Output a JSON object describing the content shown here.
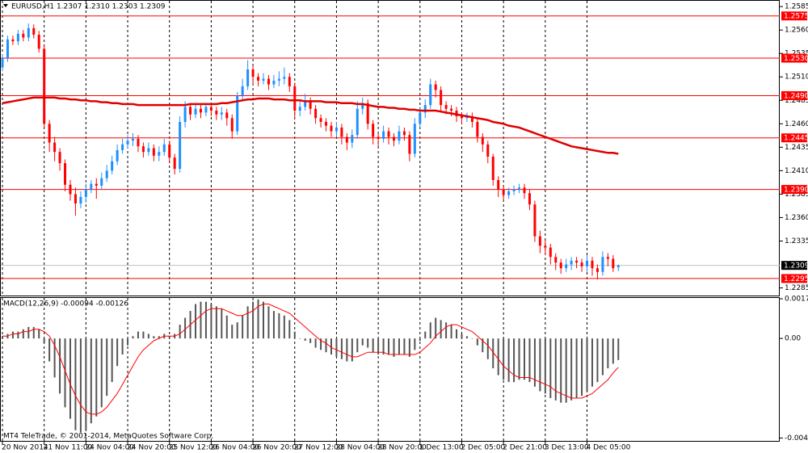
{
  "chart_data": [
    {
      "type": "candlestick",
      "title": "EURUSD,H1  1.2307 1.2310 1.2303 1.2309",
      "categories": [
        "20 Nov 2014",
        null,
        null,
        null,
        null,
        null,
        null,
        null,
        "21 Nov 11:00",
        null,
        null,
        null,
        null,
        null,
        null,
        null,
        "24 Nov 04:00",
        null,
        null,
        null,
        null,
        null,
        null,
        null,
        "24 Nov 20:00",
        null,
        null,
        null,
        null,
        null,
        null,
        null,
        "25 Nov 12:00",
        null,
        null,
        null,
        null,
        null,
        null,
        null,
        "26 Nov 04:00",
        null,
        null,
        null,
        null,
        null,
        null,
        null,
        "26 Nov 20:00",
        null,
        null,
        null,
        null,
        null,
        null,
        null,
        "27 Nov 12:00",
        null,
        null,
        null,
        null,
        null,
        null,
        null,
        "28 Nov 04:00",
        null,
        null,
        null,
        null,
        null,
        null,
        null,
        "28 Nov 20:00",
        null,
        null,
        null,
        null,
        null,
        null,
        null,
        "1 Dec 13:00",
        null,
        null,
        null,
        null,
        null,
        null,
        null,
        "2 Dec 05:00",
        null,
        null,
        null,
        null,
        null,
        null,
        null,
        "2 Dec 21:00",
        null,
        null,
        null,
        null,
        null,
        null,
        null,
        "3 Dec 13:00",
        null,
        null,
        null,
        null,
        null,
        null,
        null,
        "4 Dec 05:00",
        null,
        null,
        null,
        null,
        null,
        null
      ],
      "open": [
        1.252,
        1.253,
        1.255,
        1.2548,
        1.2556,
        1.2552,
        1.2562,
        1.2555,
        1.254,
        1.246,
        1.244,
        1.243,
        1.2418,
        1.2395,
        1.2385,
        1.2375,
        1.2382,
        1.239,
        1.2396,
        1.2394,
        1.2402,
        1.241,
        1.242,
        1.2432,
        1.2438,
        1.2442,
        1.2444,
        1.2436,
        1.243,
        1.2434,
        1.2426,
        1.243,
        1.2438,
        1.2424,
        1.2412,
        1.2462,
        1.2478,
        1.247,
        1.2476,
        1.2472,
        1.2478,
        1.2474,
        1.247,
        1.2472,
        1.2466,
        1.2452,
        1.249,
        1.25,
        1.2518,
        1.251,
        1.2506,
        1.2508,
        1.2502,
        1.2506,
        1.2508,
        1.251,
        1.25,
        1.2474,
        1.2478,
        1.2484,
        1.2476,
        1.2466,
        1.2462,
        1.2458,
        1.2452,
        1.2456,
        1.2446,
        1.244,
        1.2448,
        1.2476,
        1.2482,
        1.246,
        1.2446,
        1.2444,
        1.2452,
        1.2446,
        1.2442,
        1.2452,
        1.2448,
        1.2428,
        1.246,
        1.2472,
        1.248,
        1.2502,
        1.2496,
        1.248,
        1.2476,
        1.2474,
        1.2468,
        1.2466,
        1.2468,
        1.2462,
        1.2446,
        1.2438,
        1.2425,
        1.24,
        1.239,
        1.2384,
        1.2388,
        1.239,
        1.2392,
        1.2386,
        1.2374,
        1.234,
        1.233,
        1.2328,
        1.2318,
        1.2312,
        1.2306,
        1.231,
        1.2314,
        1.2312,
        1.2308,
        1.2314,
        1.2306,
        1.2302,
        1.2318,
        1.2316,
        1.2307
      ],
      "high": [
        1.2534,
        1.2554,
        1.2554,
        1.256,
        1.256,
        1.2567,
        1.2566,
        1.2559,
        1.2544,
        1.2464,
        1.2446,
        1.2434,
        1.2422,
        1.24,
        1.2392,
        1.2388,
        1.2396,
        1.24,
        1.2402,
        1.2408,
        1.2416,
        1.2426,
        1.2438,
        1.2444,
        1.2448,
        1.245,
        1.2448,
        1.244,
        1.244,
        1.2438,
        1.2436,
        1.2444,
        1.2442,
        1.2428,
        1.2468,
        1.2484,
        1.2482,
        1.248,
        1.248,
        1.2482,
        1.2482,
        1.2478,
        1.2478,
        1.2476,
        1.247,
        1.2494,
        1.2508,
        1.2528,
        1.2522,
        1.2514,
        1.2514,
        1.2512,
        1.2512,
        1.2516,
        1.252,
        1.2514,
        1.2504,
        1.2484,
        1.2492,
        1.2488,
        1.248,
        1.247,
        1.2466,
        1.2462,
        1.2462,
        1.246,
        1.245,
        1.2454,
        1.2484,
        1.2488,
        1.2486,
        1.2464,
        1.245,
        1.2458,
        1.2456,
        1.245,
        1.2458,
        1.2456,
        1.2452,
        1.2466,
        1.2478,
        1.2486,
        1.2508,
        1.2506,
        1.25,
        1.2484,
        1.248,
        1.2478,
        1.2472,
        1.2472,
        1.2472,
        1.2466,
        1.245,
        1.2442,
        1.2428,
        1.2404,
        1.2394,
        1.2392,
        1.2394,
        1.2396,
        1.2396,
        1.239,
        1.2378,
        1.2346,
        1.2336,
        1.2332,
        1.2322,
        1.2316,
        1.2316,
        1.2318,
        1.2318,
        1.2316,
        1.232,
        1.2318,
        1.231,
        1.2324,
        1.2322,
        1.232,
        1.231
      ],
      "low": [
        1.2516,
        1.2526,
        1.2544,
        1.2544,
        1.2548,
        1.2548,
        1.2551,
        1.2536,
        1.2456,
        1.243,
        1.242,
        1.241,
        1.2388,
        1.2378,
        1.2362,
        1.237,
        1.2376,
        1.2386,
        1.238,
        1.239,
        1.2398,
        1.2406,
        1.2416,
        1.2428,
        1.2434,
        1.2436,
        1.243,
        1.2424,
        1.2426,
        1.242,
        1.242,
        1.2426,
        1.2418,
        1.2406,
        1.2408,
        1.2456,
        1.2464,
        1.2466,
        1.2466,
        1.2468,
        1.2468,
        1.2464,
        1.2464,
        1.2458,
        1.2444,
        1.2448,
        1.2486,
        1.2496,
        1.2502,
        1.25,
        1.2502,
        1.2496,
        1.2498,
        1.25,
        1.2502,
        1.2494,
        1.2466,
        1.2468,
        1.2474,
        1.247,
        1.246,
        1.2456,
        1.2452,
        1.2446,
        1.2446,
        1.2438,
        1.2432,
        1.2434,
        1.2444,
        1.247,
        1.2454,
        1.2438,
        1.2436,
        1.244,
        1.2438,
        1.2436,
        1.2438,
        1.2442,
        1.242,
        1.2424,
        1.2456,
        1.2466,
        1.2476,
        1.2488,
        1.2472,
        1.247,
        1.2468,
        1.2462,
        1.246,
        1.2462,
        1.2456,
        1.244,
        1.243,
        1.2418,
        1.2394,
        1.2382,
        1.2378,
        1.238,
        1.2384,
        1.2386,
        1.238,
        1.2368,
        1.2334,
        1.2322,
        1.232,
        1.231,
        1.2304,
        1.23,
        1.2302,
        1.2304,
        1.2306,
        1.2302,
        1.2302,
        1.2298,
        1.2294,
        1.2298,
        1.2308,
        1.2302,
        1.2303
      ],
      "close": [
        1.253,
        1.255,
        1.2548,
        1.2556,
        1.2552,
        1.2562,
        1.2555,
        1.254,
        1.246,
        1.244,
        1.243,
        1.2418,
        1.2395,
        1.2385,
        1.2375,
        1.2382,
        1.239,
        1.2396,
        1.2394,
        1.2402,
        1.241,
        1.242,
        1.2432,
        1.2438,
        1.2442,
        1.2444,
        1.2436,
        1.243,
        1.2434,
        1.2426,
        1.243,
        1.2438,
        1.2424,
        1.2412,
        1.2462,
        1.2478,
        1.247,
        1.2476,
        1.2472,
        1.2478,
        1.2474,
        1.247,
        1.2472,
        1.2466,
        1.2452,
        1.249,
        1.25,
        1.2518,
        1.251,
        1.2506,
        1.2508,
        1.2502,
        1.2506,
        1.2508,
        1.251,
        1.25,
        1.2474,
        1.2478,
        1.2484,
        1.2476,
        1.2466,
        1.2462,
        1.2458,
        1.2452,
        1.2456,
        1.2446,
        1.244,
        1.2448,
        1.2476,
        1.2482,
        1.246,
        1.2446,
        1.2444,
        1.2452,
        1.2446,
        1.2442,
        1.2452,
        1.2448,
        1.2428,
        1.246,
        1.2472,
        1.248,
        1.2502,
        1.2496,
        1.248,
        1.2476,
        1.2474,
        1.2468,
        1.2466,
        1.2468,
        1.2462,
        1.2446,
        1.2438,
        1.2425,
        1.24,
        1.239,
        1.2384,
        1.2388,
        1.239,
        1.2392,
        1.2386,
        1.2374,
        1.234,
        1.233,
        1.2328,
        1.2318,
        1.2312,
        1.2306,
        1.231,
        1.2314,
        1.2312,
        1.2308,
        1.2314,
        1.2306,
        1.2302,
        1.2318,
        1.2316,
        1.2306,
        1.2309
      ],
      "up_color": "#1e90ff",
      "down_color": "#ff0000",
      "overlay": {
        "color": "#e00000",
        "values": [
          1.2482,
          1.2483,
          1.2484,
          1.2485,
          1.2486,
          1.2487,
          1.2488,
          1.2488,
          1.2488,
          1.2488,
          1.2488,
          1.2487,
          1.2487,
          1.2486,
          1.2486,
          1.2485,
          1.2485,
          1.2484,
          1.2484,
          1.2483,
          1.2483,
          1.2482,
          1.2482,
          1.2481,
          1.2481,
          1.2481,
          1.248,
          1.248,
          1.248,
          1.248,
          1.248,
          1.248,
          1.248,
          1.248,
          1.248,
          1.248,
          1.2481,
          1.2481,
          1.2481,
          1.2481,
          1.2481,
          1.2481,
          1.2482,
          1.2482,
          1.2483,
          1.2484,
          1.2485,
          1.2486,
          1.2486,
          1.2487,
          1.2487,
          1.2487,
          1.2486,
          1.2486,
          1.2486,
          1.2485,
          1.2485,
          1.2485,
          1.2484,
          1.2484,
          1.2484,
          1.2484,
          1.2483,
          1.2483,
          1.2483,
          1.2482,
          1.2482,
          1.2482,
          1.2481,
          1.2481,
          1.248,
          1.2479,
          1.2478,
          1.2478,
          1.2477,
          1.2477,
          1.2476,
          1.2476,
          1.2475,
          1.2475,
          1.2474,
          1.2474,
          1.2474,
          1.2474,
          1.2473,
          1.2472,
          1.2471,
          1.247,
          1.2469,
          1.2468,
          1.2467,
          1.2466,
          1.2465,
          1.2464,
          1.2462,
          1.2461,
          1.246,
          1.2458,
          1.2457,
          1.2456,
          1.2454,
          1.2452,
          1.245,
          1.2448,
          1.2446,
          1.2444,
          1.2442,
          1.244,
          1.2438,
          1.2436,
          1.2435,
          1.2434,
          1.2433,
          1.2432,
          1.2431,
          1.243,
          1.2429,
          1.2429,
          1.2428
        ]
      },
      "ylim": [
        1.2276,
        1.2592
      ],
      "yticks": [
        1.2585,
        {
          "value": 1.256,
          "label": "1.2560"
        },
        1.2535,
        {
          "value": 1.251,
          "label": "1.2510"
        },
        1.2485,
        {
          "value": 1.246,
          "label": "1.2460"
        },
        1.2435,
        {
          "value": 1.241,
          "label": "1.2410"
        },
        1.2385,
        {
          "value": 1.236,
          "label": "1.2360"
        },
        1.2335,
        1.2285
      ],
      "levels": [
        1.2575,
        {
          "value": 1.253,
          "label": "1.2530"
        },
        {
          "value": 1.249,
          "label": "1.2490"
        },
        1.2445,
        {
          "value": 1.239,
          "label": "1.2390"
        },
        1.2295
      ],
      "level_color": "#ff0000",
      "current_price": 1.2309,
      "grid": true
    },
    {
      "type": "macd",
      "title": "MACD(12,26,9) -0.00094 -0.00126",
      "values": [
        0.0001,
        0.0002,
        0.0003,
        0.0003,
        0.0004,
        0.0005,
        0.0005,
        0.0004,
        -0.0002,
        -0.001,
        -0.0017,
        -0.0024,
        -0.003,
        -0.0035,
        -0.004,
        -0.0041,
        -0.004,
        -0.0037,
        -0.0034,
        -0.003,
        -0.0025,
        -0.0019,
        -0.0012,
        -0.0007,
        -0.0003,
        0.0001,
        0.0003,
        0.0003,
        0.0002,
        0.0001,
        0.0001,
        0.0002,
        0.0001,
        0.0002,
        0.0006,
        0.0009,
        0.0012,
        0.0015,
        0.0016,
        0.0016,
        0.0015,
        0.0014,
        0.0013,
        0.001,
        0.0006,
        0.0007,
        0.001,
        0.0014,
        0.0016,
        0.0017,
        0.0016,
        0.0014,
        0.0012,
        0.0011,
        0.001,
        0.0008,
        0.0003,
        0.0,
        -0.0001,
        -0.0002,
        -0.0004,
        -0.0005,
        -0.0006,
        -0.0007,
        -0.0008,
        -0.0009,
        -0.001,
        -0.001,
        -0.0006,
        -0.0003,
        -0.0004,
        -0.0006,
        -0.0007,
        -0.0007,
        -0.0007,
        -0.0008,
        -0.0007,
        -0.0007,
        -0.0008,
        -0.0005,
        -0.0001,
        0.0003,
        0.0007,
        0.0009,
        0.0008,
        0.0007,
        0.0006,
        0.0004,
        0.0002,
        0.0001,
        0.0,
        -0.0003,
        -0.0006,
        -0.0009,
        -0.0013,
        -0.0016,
        -0.0018,
        -0.0019,
        -0.0019,
        -0.0018,
        -0.0018,
        -0.0019,
        -0.0021,
        -0.0023,
        -0.0024,
        -0.0026,
        -0.0027,
        -0.0028,
        -0.0028,
        -0.0027,
        -0.0026,
        -0.0025,
        -0.0023,
        -0.0021,
        -0.0019,
        -0.0016,
        -0.0013,
        -0.0011,
        -0.00094
      ],
      "signal": [
        0.0001,
        0.0001,
        0.0002,
        0.0002,
        0.0003,
        0.0003,
        0.0004,
        0.0004,
        0.0003,
        0.0001,
        -0.0003,
        -0.0008,
        -0.0014,
        -0.002,
        -0.0025,
        -0.0029,
        -0.0032,
        -0.0033,
        -0.0033,
        -0.0032,
        -0.003,
        -0.0027,
        -0.0024,
        -0.002,
        -0.0016,
        -0.0012,
        -0.0008,
        -0.0005,
        -0.0003,
        -0.0001,
        0.0,
        0.0001,
        0.0001,
        0.0001,
        0.0002,
        0.0004,
        0.0006,
        0.0008,
        0.001,
        0.0012,
        0.0013,
        0.0013,
        0.0013,
        0.0012,
        0.0011,
        0.001,
        0.001,
        0.0011,
        0.0012,
        0.0014,
        0.0015,
        0.0015,
        0.0014,
        0.0013,
        0.0012,
        0.0011,
        0.0009,
        0.0007,
        0.0005,
        0.0003,
        0.0001,
        -0.0001,
        -0.0002,
        -0.0004,
        -0.0005,
        -0.0006,
        -0.0007,
        -0.0008,
        -0.0008,
        -0.0007,
        -0.0006,
        -0.0006,
        -0.0006,
        -0.0006,
        -0.0007,
        -0.0007,
        -0.0007,
        -0.0007,
        -0.0007,
        -0.0007,
        -0.0006,
        -0.0004,
        -0.0002,
        0.0001,
        0.0003,
        0.0005,
        0.0006,
        0.0006,
        0.0005,
        0.0004,
        0.0003,
        0.0001,
        -0.0001,
        -0.0003,
        -0.0006,
        -0.0009,
        -0.0012,
        -0.0014,
        -0.0016,
        -0.0017,
        -0.0017,
        -0.0017,
        -0.0018,
        -0.0019,
        -0.002,
        -0.0021,
        -0.0023,
        -0.0024,
        -0.0025,
        -0.0026,
        -0.0026,
        -0.0026,
        -0.0025,
        -0.0024,
        -0.0022,
        -0.002,
        -0.0018,
        -0.0015,
        -0.00126
      ],
      "color": "#555555",
      "signal_color": "#ff0000",
      "ylim": [
        -0.0045,
        0.0018
      ],
      "yticks": [
        0.00173,
        {
          "value": 0,
          "label": "0.00"
        },
        -0.00434
      ]
    }
  ],
  "footer": "MT4 TeleTrade, © 2001-2014, MetaQuotes Software Corp."
}
